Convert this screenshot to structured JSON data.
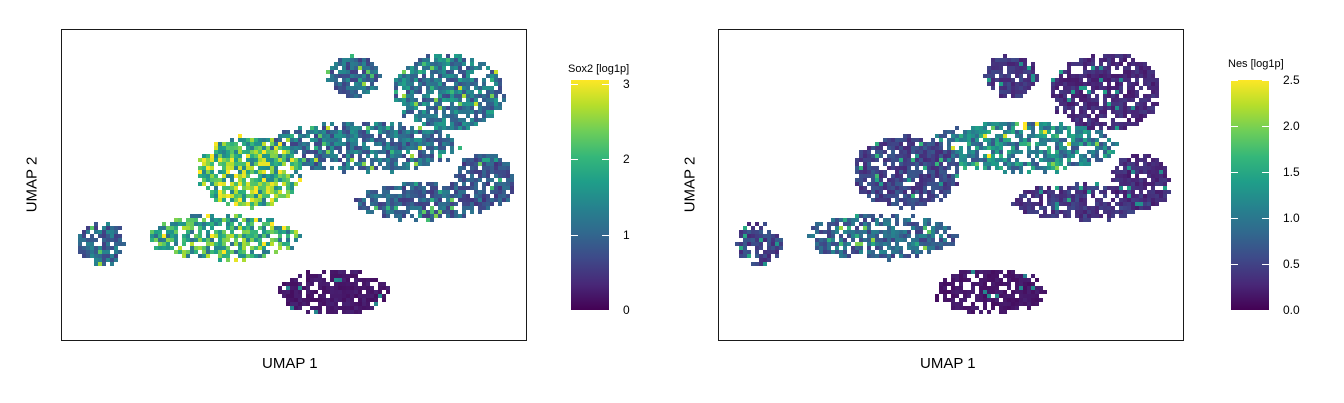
{
  "colors": {
    "viridis": [
      "#440154",
      "#482878",
      "#3e4989",
      "#31688e",
      "#26828e",
      "#1f9e89",
      "#35b779",
      "#6ece58",
      "#b5de2b",
      "#fde725"
    ],
    "frame": "#1a1a1a"
  },
  "chart_data": [
    {
      "type": "scatter",
      "xlabel": "UMAP 1",
      "ylabel": "UMAP 2",
      "legend": {
        "title": "Sox2 [log1p]",
        "placement": "right",
        "range": [
          0,
          3.05
        ],
        "ticks": [
          0,
          1,
          2,
          3
        ],
        "tick_labels": [
          "0",
          "1",
          "2",
          "3"
        ]
      },
      "regions": [
        {
          "name": "upper-right-cluster",
          "level": 1.2
        },
        {
          "name": "top-spike",
          "level": 1.0
        },
        {
          "name": "central-band",
          "level": 1.1
        },
        {
          "name": "left-bright-cluster",
          "level": 2.1
        },
        {
          "name": "lower-left-arm",
          "level": 1.9
        },
        {
          "name": "far-left-loop",
          "level": 1.0
        },
        {
          "name": "right-band",
          "level": 0.9
        },
        {
          "name": "far-right-cluster",
          "level": 0.8
        },
        {
          "name": "bottom-cluster",
          "level": 0.2
        }
      ]
    },
    {
      "type": "scatter",
      "xlabel": "UMAP 1",
      "ylabel": "UMAP 2",
      "legend": {
        "title": "Nes [log1p]",
        "placement": "right",
        "range": [
          0,
          2.5
        ],
        "ticks": [
          0,
          0.5,
          1,
          1.5,
          2,
          2.5
        ],
        "tick_labels": [
          "0.0",
          "0.5",
          "1.0",
          "1.5",
          "2.0",
          "2.5"
        ]
      },
      "regions": [
        {
          "name": "upper-right-cluster",
          "level": 0.3
        },
        {
          "name": "top-spike",
          "level": 0.4
        },
        {
          "name": "central-band",
          "level": 1.1
        },
        {
          "name": "left-bright-cluster",
          "level": 0.5
        },
        {
          "name": "lower-left-arm",
          "level": 0.8
        },
        {
          "name": "far-left-loop",
          "level": 0.5
        },
        {
          "name": "right-band",
          "level": 0.4
        },
        {
          "name": "far-right-cluster",
          "level": 0.3
        },
        {
          "name": "bottom-cluster",
          "level": 0.15
        }
      ]
    }
  ]
}
